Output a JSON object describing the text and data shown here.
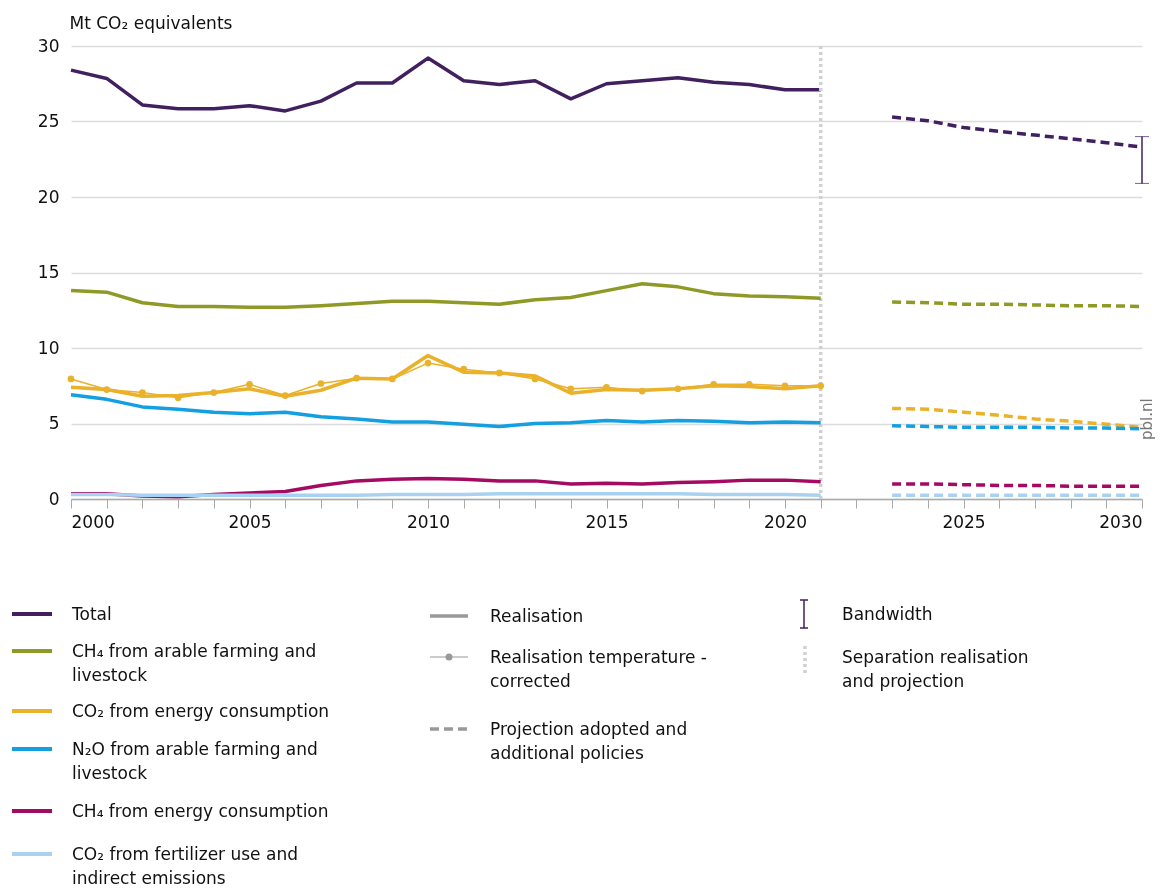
{
  "chart_data": {
    "type": "line",
    "ylabel": "Mt CO₂ equivalents",
    "xlim": [
      2000,
      2030
    ],
    "xticks": [
      2000,
      {
        "value": 2001,
        "label": null
      },
      {
        "value": 2002,
        "label": null
      },
      {
        "value": 2003,
        "label": null
      },
      {
        "value": 2004,
        "label": null
      },
      2005,
      {
        "value": 2006,
        "label": null
      },
      {
        "value": 2007,
        "label": null
      },
      {
        "value": 2008,
        "label": null
      },
      {
        "value": 2009,
        "label": null
      },
      2010,
      {
        "value": 2011,
        "label": null
      },
      {
        "value": 2012,
        "label": null
      },
      {
        "value": 2013,
        "label": null
      },
      {
        "value": 2014,
        "label": null
      },
      2015,
      {
        "value": 2016,
        "label": null
      },
      {
        "value": 2017,
        "label": null
      },
      {
        "value": 2018,
        "label": null
      },
      {
        "value": 2019,
        "label": null
      },
      2020,
      {
        "value": 2021,
        "label": null
      },
      {
        "value": 2022,
        "label": null
      },
      {
        "value": 2023,
        "label": null
      },
      {
        "value": 2024,
        "label": null
      },
      2025,
      {
        "value": 2026,
        "label": null
      },
      {
        "value": 2027,
        "label": null
      },
      {
        "value": 2028,
        "label": null
      },
      {
        "value": 2029,
        "label": null
      },
      2030
    ],
    "ylim": [
      0,
      30
    ],
    "yticks": [
      0,
      5,
      10,
      15,
      20,
      25,
      30
    ],
    "grid": "y",
    "legend": "bottom",
    "series": [
      {
        "name": "Total",
        "color": "#41205f",
        "x": [
          2000,
          2001,
          2002,
          2003,
          2004,
          2005,
          2006,
          2007,
          2008,
          2009,
          2010,
          2011,
          2012,
          2013,
          2014,
          2015,
          2016,
          2017,
          2018,
          2019,
          2020,
          2021
        ],
        "values": [
          28.4,
          27.85,
          26.1,
          25.85,
          25.85,
          26.05,
          25.7,
          26.35,
          27.55,
          27.55,
          29.2,
          27.7,
          27.45,
          27.7,
          26.5,
          27.5,
          27.7,
          27.9,
          27.6,
          27.45,
          27.1,
          27.1
        ]
      },
      {
        "name": "CH₄ from arable farming and livestock",
        "color": "#8f9a26",
        "x": [
          2000,
          2001,
          2002,
          2003,
          2004,
          2005,
          2006,
          2007,
          2008,
          2009,
          2010,
          2011,
          2012,
          2013,
          2014,
          2015,
          2016,
          2017,
          2018,
          2019,
          2020,
          2021
        ],
        "values": [
          13.8,
          13.7,
          13.0,
          12.75,
          12.75,
          12.7,
          12.7,
          12.8,
          12.95,
          13.1,
          13.1,
          13.0,
          12.9,
          13.2,
          13.35,
          13.8,
          14.25,
          14.05,
          13.6,
          13.45,
          13.4,
          13.3
        ]
      },
      {
        "name": "CO₂ from energy consumption",
        "color": "#eab12a",
        "x": [
          2000,
          2001,
          2002,
          2003,
          2004,
          2005,
          2006,
          2007,
          2008,
          2009,
          2010,
          2011,
          2012,
          2013,
          2014,
          2015,
          2016,
          2017,
          2018,
          2019,
          2020,
          2021
        ],
        "values": [
          7.4,
          7.25,
          6.8,
          6.85,
          7.05,
          7.3,
          6.8,
          7.2,
          8.0,
          7.95,
          9.5,
          8.4,
          8.35,
          8.15,
          7.0,
          7.25,
          7.2,
          7.3,
          7.5,
          7.45,
          7.3,
          7.5
        ]
      },
      {
        "name": "N₂O from arable farming and livestock",
        "color": "#139fe0",
        "x": [
          2000,
          2001,
          2002,
          2003,
          2004,
          2005,
          2006,
          2007,
          2008,
          2009,
          2010,
          2011,
          2012,
          2013,
          2014,
          2015,
          2016,
          2017,
          2018,
          2019,
          2020,
          2021
        ],
        "values": [
          6.9,
          6.6,
          6.1,
          5.95,
          5.75,
          5.65,
          5.75,
          5.45,
          5.3,
          5.1,
          5.1,
          4.95,
          4.8,
          5.0,
          5.05,
          5.2,
          5.1,
          5.2,
          5.15,
          5.05,
          5.1,
          5.05
        ]
      },
      {
        "name": "CH₄ from energy consumption",
        "color": "#a50a62",
        "x": [
          2000,
          2001,
          2002,
          2003,
          2004,
          2005,
          2006,
          2007,
          2008,
          2009,
          2010,
          2011,
          2012,
          2013,
          2014,
          2015,
          2016,
          2017,
          2018,
          2019,
          2020,
          2021
        ],
        "values": [
          0.35,
          0.35,
          0.2,
          0.15,
          0.3,
          0.4,
          0.5,
          0.9,
          1.2,
          1.3,
          1.35,
          1.3,
          1.2,
          1.2,
          1.0,
          1.05,
          1.0,
          1.1,
          1.15,
          1.25,
          1.25,
          1.15
        ]
      },
      {
        "name": "CO₂ from fertilizer use and indirect emissions",
        "color": "#a9d2f2",
        "x": [
          2000,
          2001,
          2002,
          2003,
          2004,
          2005,
          2006,
          2007,
          2008,
          2009,
          2010,
          2011,
          2012,
          2013,
          2014,
          2015,
          2016,
          2017,
          2018,
          2019,
          2020,
          2021
        ],
        "values": [
          0.3,
          0.3,
          0.25,
          0.25,
          0.25,
          0.25,
          0.25,
          0.25,
          0.25,
          0.3,
          0.3,
          0.3,
          0.35,
          0.35,
          0.35,
          0.35,
          0.35,
          0.35,
          0.3,
          0.3,
          0.3,
          0.25
        ]
      },
      {
        "color": "#eab12a",
        "marker": "circle",
        "x": [
          2000,
          2001,
          2002,
          2003,
          2004,
          2005,
          2006,
          2007,
          2008,
          2009,
          2010,
          2011,
          2012,
          2013,
          2014,
          2015,
          2016,
          2017,
          2018,
          2019,
          2020,
          2021
        ],
        "values": [
          7.95,
          7.25,
          7.05,
          6.7,
          7.05,
          7.6,
          6.85,
          7.65,
          8.0,
          7.95,
          9.0,
          8.6,
          8.35,
          7.95,
          7.3,
          7.4,
          7.15,
          7.3,
          7.6,
          7.6,
          7.5,
          7.5
        ]
      },
      {
        "color": "#41205f",
        "line_style": "dashed",
        "x": [
          2023,
          2024,
          2025,
          2026,
          2027,
          2028,
          2029,
          2030
        ],
        "values": [
          25.3,
          25.05,
          24.6,
          24.35,
          24.1,
          23.85,
          23.6,
          23.3
        ],
        "errors": [
          null,
          null,
          null,
          null,
          null,
          null,
          null,
          [
            20.9,
            24.0
          ]
        ]
      },
      {
        "color": "#8f9a26",
        "line_style": "dashed",
        "x": [
          2023,
          2024,
          2025,
          2026,
          2027,
          2028,
          2029,
          2030
        ],
        "values": [
          13.05,
          13.0,
          12.9,
          12.9,
          12.85,
          12.8,
          12.8,
          12.75
        ]
      },
      {
        "color": "#eab12a",
        "line_style": "dashed",
        "x": [
          2023,
          2024,
          2025,
          2026,
          2027,
          2028,
          2029,
          2030
        ],
        "values": [
          6.0,
          5.95,
          5.75,
          5.55,
          5.3,
          5.15,
          4.95,
          4.75
        ]
      },
      {
        "color": "#139fe0",
        "line_style": "dashed",
        "x": [
          2023,
          2024,
          2025,
          2026,
          2027,
          2028,
          2029,
          2030
        ],
        "values": [
          4.85,
          4.8,
          4.75,
          4.75,
          4.75,
          4.7,
          4.7,
          4.65
        ]
      },
      {
        "color": "#a50a62",
        "line_style": "dashed",
        "x": [
          2023,
          2024,
          2025,
          2026,
          2027,
          2028,
          2029,
          2030
        ],
        "values": [
          1.0,
          1.0,
          0.95,
          0.9,
          0.9,
          0.85,
          0.85,
          0.85
        ]
      },
      {
        "color": "#a9d2f2",
        "line_style": "dashed",
        "x": [
          2023,
          2024,
          2025,
          2026,
          2027,
          2028,
          2029,
          2030
        ],
        "values": [
          0.25,
          0.25,
          0.25,
          0.25,
          0.25,
          0.25,
          0.25,
          0.25
        ]
      }
    ],
    "ref_lines": [
      {
        "axis": "x",
        "value": 2021,
        "label": "Separation realisation and projection",
        "color": "#cfcfd4",
        "line_style": "dotted"
      }
    ],
    "annotations": [
      "Realisation",
      "Realisation temperature - corrected",
      "Projection adopted and additional policies",
      "Bandwidth",
      "pbl.nl"
    ]
  }
}
